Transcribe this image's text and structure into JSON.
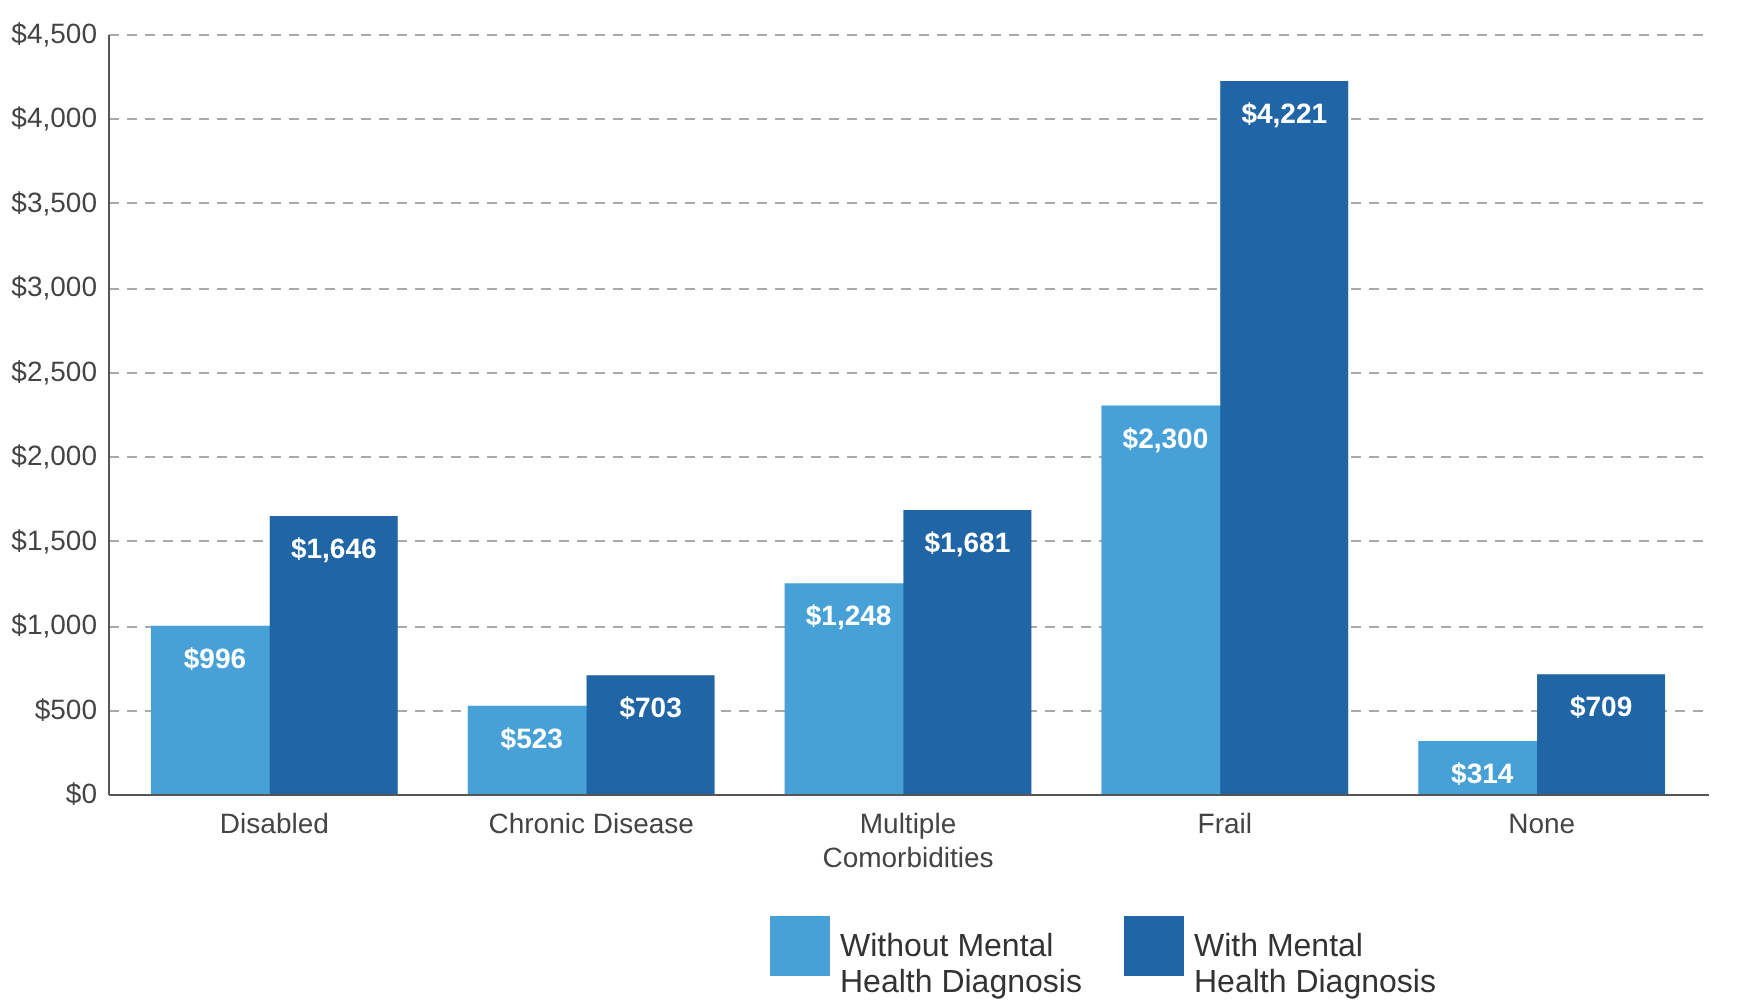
{
  "chart_data": {
    "type": "bar",
    "categories": [
      "Disabled",
      "Chronic Disease",
      "Multiple Comorbidities",
      "Frail",
      "None"
    ],
    "series": [
      {
        "name": "Without Mental Health Diagnosis",
        "color": "#47a1d6",
        "values": [
          996,
          523,
          1248,
          2300,
          314
        ],
        "value_labels": [
          "$996",
          "$523",
          "$1,248",
          "$2,300",
          "$314"
        ]
      },
      {
        "name": "With Mental Health Diagnosis",
        "color": "#2065a6",
        "values": [
          1646,
          703,
          1681,
          4221,
          709
        ],
        "value_labels": [
          "$1,646",
          "$703",
          "$1,681",
          "$4,221",
          "$709"
        ]
      }
    ],
    "ylim": [
      0,
      4500
    ],
    "yticks": [
      {
        "value": 0,
        "label": "$0"
      },
      {
        "value": 500,
        "label": "$500"
      },
      {
        "value": 1000,
        "label": "$1,000"
      },
      {
        "value": 1500,
        "label": "$1,500"
      },
      {
        "value": 2000,
        "label": "$2,000"
      },
      {
        "value": 2500,
        "label": "$2,500"
      },
      {
        "value": 3000,
        "label": "$3,000"
      },
      {
        "value": 3500,
        "label": "$3,500"
      },
      {
        "value": 4000,
        "label": "$4,000"
      },
      {
        "value": 4500,
        "label": "$4,500"
      }
    ],
    "grid": "y",
    "legend": "bottom"
  }
}
